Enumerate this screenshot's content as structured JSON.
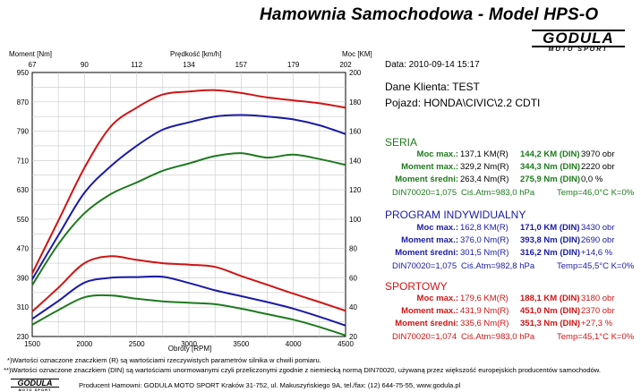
{
  "header": {
    "title": "Hamownia Samochodowa   -   Model HPS-O",
    "logo_text": "GODULA",
    "logo_sub": "MOTO SPORT"
  },
  "info": {
    "date": "Data: 2010-09-14  15:17",
    "client": "Dane Klienta: TEST",
    "vehicle": "Pojazd: HONDA\\CIVIC\\2.2 CDTI"
  },
  "sections": [
    {
      "title": "SERIA",
      "color": "#1d7a1d",
      "rows": [
        {
          "label": "Moc max.:",
          "v1": "137,1 KM(R)",
          "v2": "144,2 KM (DIN)",
          "v3": "3970 obr"
        },
        {
          "label": "Moment max.:",
          "v1": "329,2 Nm(R)",
          "v2": "344,3 Nm (DIN)",
          "v3": "2220 obr"
        },
        {
          "label": "Moment średni:",
          "v1": "263,4 Nm(R)",
          "v2": "275,9 Nm (DIN)",
          "v3": "0,0 %"
        }
      ],
      "din": {
        "d1": "DIN70020=1,075",
        "d2": "Ciś.Atm=983,0 hPa",
        "d3": "Temp=46,0°C  K=0%"
      }
    },
    {
      "title": "PROGRAM INDYWIDUALNY",
      "color": "#1a1aa6",
      "rows": [
        {
          "label": "Moc max.:",
          "v1": "162,8 KM(R)",
          "v2": "171,0 KM (DIN)",
          "v3": "3430 obr"
        },
        {
          "label": "Moment max.:",
          "v1": "376,0 Nm(R)",
          "v2": "393,8 Nm (DIN)",
          "v3": "2690 obr"
        },
        {
          "label": "Moment średni:",
          "v1": "301,5 Nm(R)",
          "v2": "316,2 Nm (DIN)",
          "v3": "+14,6 %"
        }
      ],
      "din": {
        "d1": "DIN70020=1,075",
        "d2": "Ciś.Atm=982,8 hPa",
        "d3": "Temp=45,5°C  K=0%"
      }
    },
    {
      "title": "SPORTOWY",
      "color": "#d01414",
      "rows": [
        {
          "label": "Moc max.:",
          "v1": "179,6 KM(R)",
          "v2": "188,1 KM (DIN)",
          "v3": "3180 obr"
        },
        {
          "label": "Moment max.:",
          "v1": "431,9 Nm(R)",
          "v2": "451,0 Nm (DIN)",
          "v3": "2370 obr"
        },
        {
          "label": "Moment średni:",
          "v1": "335,6 Nm(R)",
          "v2": "351,3 Nm (DIN)",
          "v3": "+27,3 %"
        }
      ],
      "din": {
        "d1": "DIN70020=1,074",
        "d2": "Ciś.Atm=983,0 hPa",
        "d3": "Temp=45,1°C  K=0%"
      }
    }
  ],
  "footer": {
    "note1": "*)Wartości oznaczone znaczkiem (R) są wartościami rzeczywistych parametrów silnika w chwili pomiaru.",
    "note2": "**)Wartości oznaczone znaczkiem (DIN) są wartościami unormowanymi czyli przeliczonymi zgodnie z niemiecką normą DIN70020, używaną przez większość europejskich producentów samochodów.",
    "producer": "Producent Hamowni: GODULA MOTO SPORT Kraków 31-752, ul. Makuszyńskiego 9A, tel./fax: (12) 644-75-55, www.godula.pl",
    "logo_text": "GODULA",
    "logo_sub": "MOTO SPORT"
  },
  "chart_data": {
    "type": "line",
    "xlabel": "Obroty [RPM]",
    "ylabel_left": "Moment [Nm]",
    "ylabel_right": "Moc [KM]",
    "top_axis_label": "Prędkość [km/h]",
    "xlim": [
      1500,
      4500
    ],
    "ylim_left": [
      230,
      950
    ],
    "ylim_right": [
      20,
      200
    ],
    "x_ticks": [
      1500,
      2000,
      2500,
      3000,
      3500,
      4000,
      4500
    ],
    "y_left_ticks": [
      230,
      310,
      390,
      470,
      550,
      630,
      710,
      790,
      870,
      950
    ],
    "y_right_ticks": [
      20,
      40,
      60,
      80,
      100,
      120,
      140,
      160,
      180,
      200
    ],
    "top_ticks": [
      "67",
      "90",
      "112",
      "134",
      "157",
      "179",
      "202"
    ],
    "grid": true,
    "colors": {
      "SERIA": "#1d7a1d",
      "PROGRAM INDYWIDUALNY": "#1a1aa6",
      "SPORTOWY": "#d01414"
    },
    "x": [
      1500,
      1750,
      2000,
      2250,
      2500,
      2750,
      3000,
      3250,
      3500,
      3750,
      4000,
      4250,
      4500
    ],
    "torque_series": [
      {
        "name": "SERIA",
        "values": [
          262,
          302,
          337,
          342,
          333,
          326,
          322,
          318,
          306,
          291,
          276,
          256,
          233
        ]
      },
      {
        "name": "PROGRAM INDYWIDUALNY",
        "values": [
          278,
          327,
          377,
          390,
          392,
          393,
          376,
          356,
          340,
          324,
          306,
          284,
          260
        ]
      },
      {
        "name": "SPORTOWY",
        "values": [
          298,
          363,
          430,
          449,
          439,
          430,
          426,
          420,
          395,
          371,
          347,
          324,
          300
        ]
      }
    ],
    "power_series": [
      {
        "name": "SERIA",
        "values": [
          55,
          83,
          104,
          117,
          125,
          133,
          138,
          143,
          145,
          142,
          144,
          141,
          137
        ]
      },
      {
        "name": "PROGRAM INDYWIDUALNY",
        "values": [
          59,
          89,
          118,
          136,
          150,
          161,
          166,
          170,
          171,
          170,
          168,
          164,
          158
        ]
      },
      {
        "name": "SPORTOWY",
        "values": [
          63,
          99,
          135,
          163,
          176,
          185,
          187,
          188,
          186,
          183,
          181,
          179,
          176
        ]
      }
    ]
  }
}
